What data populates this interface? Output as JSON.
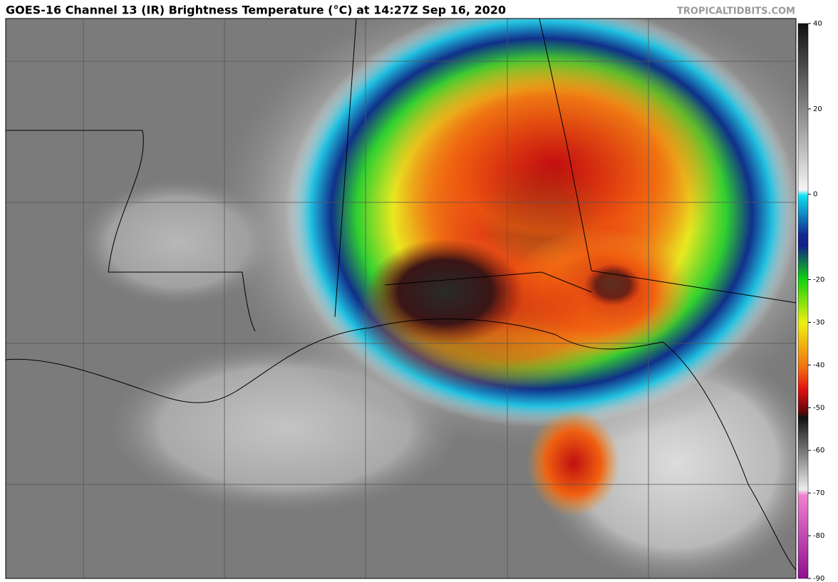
{
  "header": {
    "title": "GOES-16 Channel 13 (IR) Brightness Temperature (°C) at 14:27Z Sep 16, 2020",
    "source": "TROPICALTIDBITS.COM"
  },
  "colorbar": {
    "range": [
      40,
      -90
    ],
    "ticks": [
      40,
      20,
      0,
      -20,
      -30,
      -40,
      -50,
      -60,
      -70,
      -80,
      -90
    ]
  }
}
